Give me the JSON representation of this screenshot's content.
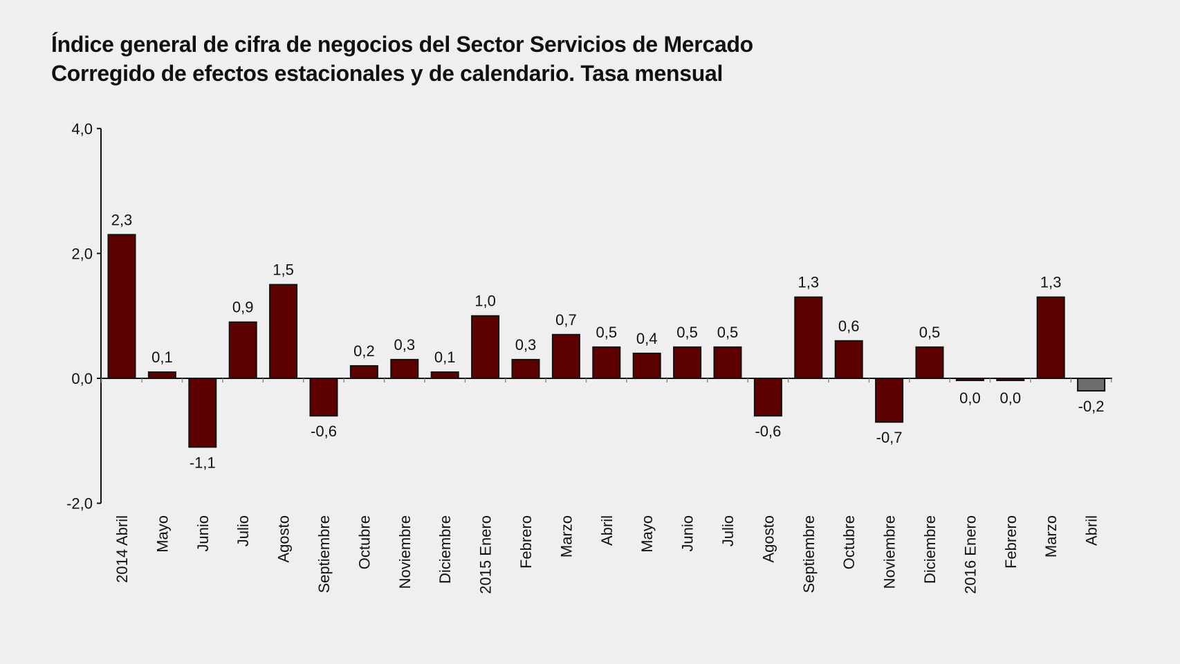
{
  "chart_data": {
    "type": "bar",
    "title": "Índice general de cifra de negocios del Sector Servicios de Mercado",
    "subtitle": "Corregido de efectos estacionales y de calendario. Tasa mensual",
    "xlabel": "",
    "ylabel": "",
    "ylim": [
      -2.0,
      4.0
    ],
    "yticks": [
      "4,0",
      "2,0",
      "0,0",
      "-2,0"
    ],
    "ytick_values": [
      4,
      2,
      0,
      -2
    ],
    "grid": false,
    "legend": "none",
    "categories": [
      "2014 Abril",
      "Mayo",
      "Junio",
      "Julio",
      "Agosto",
      "Septiembre",
      "Octubre",
      "Noviembre",
      "Diciembre",
      "2015 Enero",
      "Febrero",
      "Marzo",
      "Abril",
      "Mayo",
      "Junio",
      "Julio",
      "Agosto",
      "Septiembre",
      "Octubre",
      "Noviembre",
      "Diciembre",
      "2016 Enero",
      "Febrero",
      "Marzo",
      "Abril"
    ],
    "values": [
      2.3,
      0.1,
      -1.1,
      0.9,
      1.5,
      -0.6,
      0.2,
      0.3,
      0.1,
      1.0,
      0.3,
      0.7,
      0.5,
      0.4,
      0.5,
      0.5,
      -0.6,
      1.3,
      0.6,
      -0.7,
      0.5,
      0.0,
      0.0,
      1.3,
      -0.2
    ],
    "labels": [
      "2,3",
      "0,1",
      "-1,1",
      "0,9",
      "1,5",
      "-0,6",
      "0,2",
      "0,3",
      "0,1",
      "1,0",
      "0,3",
      "0,7",
      "0,5",
      "0,4",
      "0,5",
      "0,5",
      "-0,6",
      "1,3",
      "0,6",
      "-0,7",
      "0,5",
      "0,0",
      "0,0",
      "1,3",
      "-0,2"
    ],
    "colors": {
      "bar": "#5c0000",
      "last_bar": "#6e6e6e",
      "background": "#efefef",
      "axis": "#111111"
    }
  }
}
